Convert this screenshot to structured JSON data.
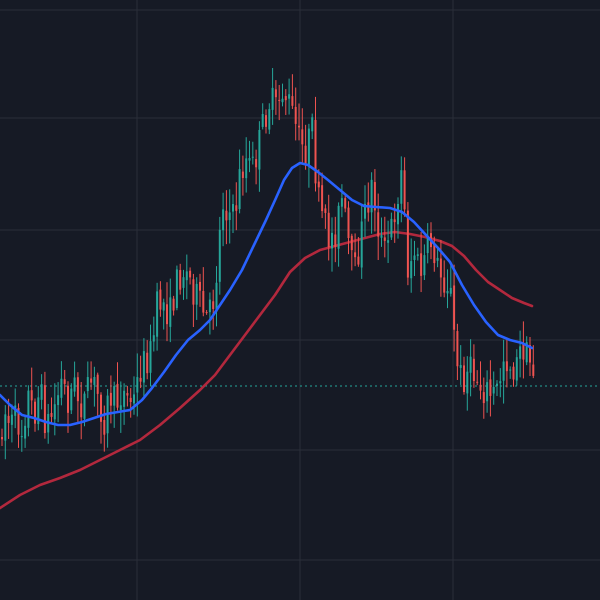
{
  "theme": {
    "background": "#161a25",
    "grid": "#2a2e39",
    "up": "#26a69a",
    "down": "#ef5350",
    "ma_fast": "#2962ff",
    "ma_slow": "#b2283d",
    "ref_line": "#26a69a"
  },
  "chart_data": {
    "type": "candlestick",
    "title": "",
    "xlabel": "",
    "ylabel": "",
    "grid": true,
    "ylim": [
      0,
      600
    ],
    "reference_price": 386,
    "n_bars": 100,
    "price_path": [
      [
        0,
        440
      ],
      [
        4,
        410
      ],
      [
        10,
        425
      ],
      [
        16,
        420
      ],
      [
        22,
        430
      ],
      [
        28,
        395
      ],
      [
        34,
        415
      ],
      [
        40,
        390
      ],
      [
        46,
        425
      ],
      [
        52,
        415
      ],
      [
        58,
        395
      ],
      [
        62,
        380
      ],
      [
        68,
        400
      ],
      [
        74,
        385
      ],
      [
        80,
        405
      ],
      [
        86,
        400
      ],
      [
        92,
        380
      ],
      [
        98,
        395
      ],
      [
        104,
        420
      ],
      [
        110,
        395
      ],
      [
        116,
        405
      ],
      [
        122,
        390
      ],
      [
        128,
        400
      ],
      [
        134,
        400
      ],
      [
        140,
        370
      ],
      [
        146,
        360
      ],
      [
        152,
        350
      ],
      [
        158,
        300
      ],
      [
        164,
        305
      ],
      [
        170,
        315
      ],
      [
        176,
        285
      ],
      [
        182,
        270
      ],
      [
        188,
        275
      ],
      [
        194,
        290
      ],
      [
        200,
        305
      ],
      [
        206,
        320
      ],
      [
        212,
        310
      ],
      [
        218,
        260
      ],
      [
        222,
        200
      ],
      [
        228,
        210
      ],
      [
        234,
        220
      ],
      [
        240,
        175
      ],
      [
        246,
        160
      ],
      [
        252,
        170
      ],
      [
        258,
        150
      ],
      [
        264,
        120
      ],
      [
        270,
        100
      ],
      [
        276,
        110
      ],
      [
        282,
        90
      ],
      [
        288,
        100
      ],
      [
        294,
        120
      ],
      [
        300,
        145
      ],
      [
        306,
        150
      ],
      [
        312,
        130
      ],
      [
        318,
        200
      ],
      [
        324,
        225
      ],
      [
        330,
        240
      ],
      [
        336,
        230
      ],
      [
        342,
        200
      ],
      [
        348,
        240
      ],
      [
        354,
        280
      ],
      [
        360,
        240
      ],
      [
        366,
        210
      ],
      [
        372,
        185
      ],
      [
        378,
        225
      ],
      [
        384,
        255
      ],
      [
        390,
        235
      ],
      [
        396,
        205
      ],
      [
        402,
        170
      ],
      [
        408,
        270
      ],
      [
        414,
        250
      ],
      [
        420,
        275
      ],
      [
        426,
        255
      ],
      [
        432,
        240
      ],
      [
        438,
        270
      ],
      [
        444,
        280
      ],
      [
        450,
        285
      ],
      [
        456,
        360
      ],
      [
        462,
        380
      ],
      [
        468,
        370
      ],
      [
        474,
        375
      ],
      [
        480,
        385
      ],
      [
        486,
        390
      ],
      [
        492,
        395
      ],
      [
        498,
        390
      ],
      [
        504,
        355
      ],
      [
        510,
        365
      ],
      [
        516,
        370
      ],
      [
        522,
        345
      ],
      [
        528,
        360
      ],
      [
        534,
        370
      ]
    ],
    "ma_fast": [
      [
        0,
        395
      ],
      [
        10,
        405
      ],
      [
        22,
        415
      ],
      [
        34,
        418
      ],
      [
        46,
        422
      ],
      [
        58,
        425
      ],
      [
        70,
        425
      ],
      [
        82,
        422
      ],
      [
        94,
        418
      ],
      [
        106,
        414
      ],
      [
        118,
        412
      ],
      [
        130,
        410
      ],
      [
        142,
        400
      ],
      [
        152,
        388
      ],
      [
        164,
        372
      ],
      [
        176,
        355
      ],
      [
        188,
        340
      ],
      [
        200,
        330
      ],
      [
        210,
        320
      ],
      [
        220,
        305
      ],
      [
        230,
        290
      ],
      [
        242,
        270
      ],
      [
        254,
        245
      ],
      [
        266,
        220
      ],
      [
        276,
        198
      ],
      [
        284,
        180
      ],
      [
        292,
        168
      ],
      [
        300,
        163
      ],
      [
        308,
        165
      ],
      [
        318,
        172
      ],
      [
        328,
        180
      ],
      [
        340,
        190
      ],
      [
        352,
        200
      ],
      [
        364,
        206
      ],
      [
        376,
        207
      ],
      [
        390,
        208
      ],
      [
        402,
        212
      ],
      [
        414,
        222
      ],
      [
        426,
        235
      ],
      [
        438,
        248
      ],
      [
        450,
        262
      ],
      [
        462,
        285
      ],
      [
        474,
        305
      ],
      [
        486,
        322
      ],
      [
        498,
        335
      ],
      [
        510,
        340
      ],
      [
        522,
        343
      ],
      [
        532,
        348
      ]
    ],
    "ma_slow": [
      [
        0,
        508
      ],
      [
        20,
        495
      ],
      [
        40,
        485
      ],
      [
        60,
        478
      ],
      [
        80,
        470
      ],
      [
        100,
        460
      ],
      [
        120,
        450
      ],
      [
        140,
        440
      ],
      [
        160,
        425
      ],
      [
        180,
        408
      ],
      [
        200,
        390
      ],
      [
        215,
        375
      ],
      [
        230,
        355
      ],
      [
        245,
        335
      ],
      [
        260,
        315
      ],
      [
        275,
        295
      ],
      [
        290,
        272
      ],
      [
        305,
        258
      ],
      [
        320,
        250
      ],
      [
        335,
        246
      ],
      [
        350,
        242
      ],
      [
        365,
        238
      ],
      [
        380,
        234
      ],
      [
        395,
        232
      ],
      [
        410,
        234
      ],
      [
        425,
        237
      ],
      [
        440,
        241
      ],
      [
        452,
        246
      ],
      [
        464,
        256
      ],
      [
        476,
        270
      ],
      [
        488,
        282
      ],
      [
        500,
        290
      ],
      [
        512,
        298
      ],
      [
        524,
        303
      ],
      [
        532,
        306
      ]
    ]
  }
}
